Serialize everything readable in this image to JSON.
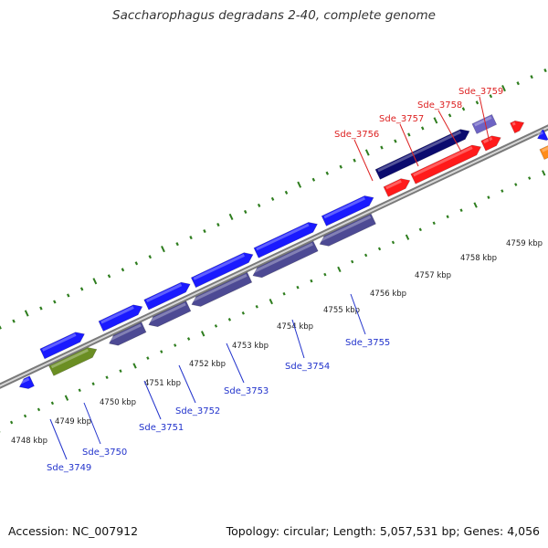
{
  "title": "Saccharophagus degradans 2-40, complete genome",
  "footer": {
    "accession": "Accession: NC_007912",
    "summary": "Topology: circular; Length: 5,057,531 bp; Genes: 4,056"
  },
  "colors": {
    "background": "#ffffff",
    "backbone": "#9a9a9a",
    "tick": "#2e7d1e",
    "forward_label": "#dd2222",
    "reverse_label": "#2233cc",
    "red_feature": "#ff1a1a",
    "blue_feature": "#1a1aff",
    "navy_feature": "#0b0b6e",
    "lavender_feature": "#6d63c4",
    "slate_feature": "#4d4a94",
    "olive_feature": "#6b8e23",
    "orange_feature": "#ff8c1a",
    "grey_feature": "#bbbbbb"
  },
  "kbp_labels": [
    "4748 kbp",
    "4749 kbp",
    "4750 kbp",
    "4751 kbp",
    "4752 kbp",
    "4753 kbp",
    "4754 kbp",
    "4755 kbp",
    "4756 kbp",
    "4757 kbp",
    "4758 kbp",
    "4759 kbp"
  ],
  "gene_labels_top": [
    "Sde_3756",
    "Sde_3757",
    "Sde_3758",
    "Sde_3759"
  ],
  "gene_labels_bottom": [
    "Sde_3749",
    "Sde_3750",
    "Sde_3751",
    "Sde_3752",
    "Sde_3753",
    "Sde_3754",
    "Sde_3755"
  ]
}
